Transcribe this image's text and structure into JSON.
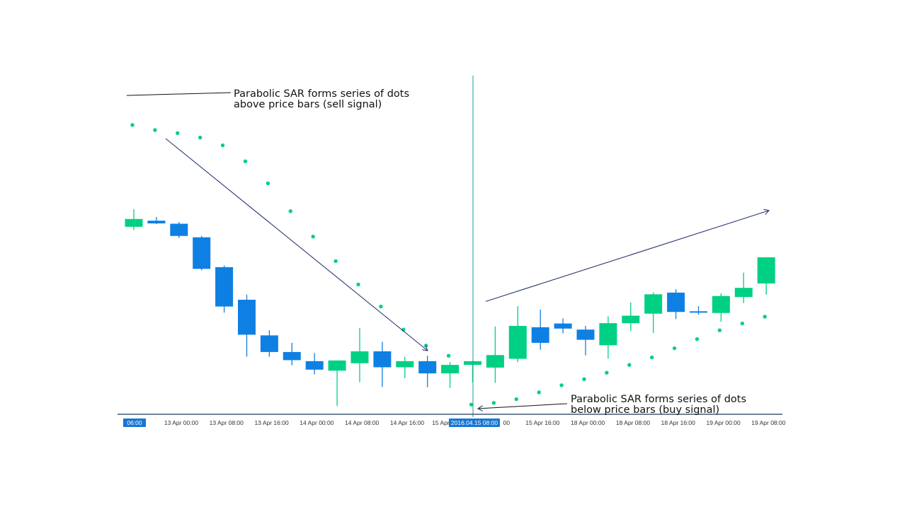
{
  "chart_data": {
    "type": "candlestick",
    "title": "",
    "xlabel": "",
    "ylabel": "",
    "ylim": [
      0,
      100
    ],
    "grid": false,
    "colors": {
      "up": "#00d084",
      "down": "#0f80e3",
      "sar": "#00d084",
      "crosshair": "#1a9e8f",
      "axis": "#1b3a57",
      "arrow": "#2a3770",
      "highlight_bg": "#1676d2"
    },
    "candles": [
      {
        "o": 54.0,
        "h": 59.2,
        "l": 53.0,
        "c": 56.3
      },
      {
        "o": 55.8,
        "h": 56.9,
        "l": 54.8,
        "c": 55.0
      },
      {
        "o": 54.9,
        "h": 55.4,
        "l": 50.7,
        "c": 51.3
      },
      {
        "o": 50.9,
        "h": 51.3,
        "l": 41.2,
        "c": 41.6
      },
      {
        "o": 42.1,
        "h": 42.6,
        "l": 28.7,
        "c": 30.5
      },
      {
        "o": 32.5,
        "h": 34.0,
        "l": 15.7,
        "c": 22.2
      },
      {
        "o": 22.0,
        "h": 23.5,
        "l": 15.7,
        "c": 17.1
      },
      {
        "o": 17.1,
        "h": 19.8,
        "l": 13.2,
        "c": 14.7
      },
      {
        "o": 14.4,
        "h": 16.8,
        "l": 10.5,
        "c": 11.9
      },
      {
        "o": 11.6,
        "h": 14.6,
        "l": 1.2,
        "c": 14.6
      },
      {
        "o": 13.8,
        "h": 24.2,
        "l": 8.2,
        "c": 17.3
      },
      {
        "o": 17.3,
        "h": 20.1,
        "l": 6.8,
        "c": 12.6
      },
      {
        "o": 12.6,
        "h": 15.7,
        "l": 9.4,
        "c": 14.4
      },
      {
        "o": 14.4,
        "h": 16.0,
        "l": 6.7,
        "c": 10.8
      },
      {
        "o": 10.8,
        "h": 14.1,
        "l": 6.5,
        "c": 13.3
      },
      {
        "o": 13.3,
        "h": 14.4,
        "l": 8.2,
        "c": 14.4
      },
      {
        "o": 12.5,
        "h": 24.6,
        "l": 8.0,
        "c": 16.2
      },
      {
        "o": 15.1,
        "h": 30.6,
        "l": 14.1,
        "c": 24.8
      },
      {
        "o": 24.4,
        "h": 29.6,
        "l": 17.8,
        "c": 19.8
      },
      {
        "o": 25.5,
        "h": 27.0,
        "l": 22.6,
        "c": 24.0
      },
      {
        "o": 23.7,
        "h": 24.8,
        "l": 16.1,
        "c": 20.7
      },
      {
        "o": 19.1,
        "h": 27.6,
        "l": 15.1,
        "c": 25.6
      },
      {
        "o": 25.6,
        "h": 31.7,
        "l": 23.3,
        "c": 27.8
      },
      {
        "o": 28.4,
        "h": 34.7,
        "l": 22.7,
        "c": 34.1
      },
      {
        "o": 34.6,
        "h": 35.6,
        "l": 26.8,
        "c": 28.9
      },
      {
        "o": 29.1,
        "h": 30.6,
        "l": 28.1,
        "c": 28.7
      },
      {
        "o": 28.6,
        "h": 34.4,
        "l": 26.0,
        "c": 33.6
      },
      {
        "o": 33.3,
        "h": 40.5,
        "l": 31.5,
        "c": 36.0
      },
      {
        "o": 37.3,
        "h": 45.0,
        "l": 34.0,
        "c": 45.0
      }
    ],
    "sar": [
      {
        "i": 0,
        "v": 84.0
      },
      {
        "i": 1,
        "v": 82.5
      },
      {
        "i": 2,
        "v": 81.6
      },
      {
        "i": 3,
        "v": 80.3
      },
      {
        "i": 4,
        "v": 78.0
      },
      {
        "i": 5,
        "v": 73.3
      },
      {
        "i": 6,
        "v": 66.8
      },
      {
        "i": 7,
        "v": 58.6
      },
      {
        "i": 8,
        "v": 51.1
      },
      {
        "i": 9,
        "v": 43.9
      },
      {
        "i": 10,
        "v": 37.0
      },
      {
        "i": 11,
        "v": 30.5
      },
      {
        "i": 12,
        "v": 23.7
      },
      {
        "i": 13,
        "v": 19.0
      },
      {
        "i": 14,
        "v": 16.0
      },
      {
        "i": 15,
        "v": 1.6
      },
      {
        "i": 16,
        "v": 2.1
      },
      {
        "i": 17,
        "v": 3.2
      },
      {
        "i": 18,
        "v": 5.2
      },
      {
        "i": 19,
        "v": 7.3
      },
      {
        "i": 20,
        "v": 9.1
      },
      {
        "i": 21,
        "v": 11.0
      },
      {
        "i": 22,
        "v": 13.3
      },
      {
        "i": 23,
        "v": 15.5
      },
      {
        "i": 24,
        "v": 18.2
      },
      {
        "i": 25,
        "v": 20.9
      },
      {
        "i": 26,
        "v": 23.5
      },
      {
        "i": 27,
        "v": 25.5
      },
      {
        "i": 28,
        "v": 27.5
      }
    ],
    "x_ticks": [
      {
        "label": "06:00",
        "i": 0,
        "highlight": true
      },
      {
        "label": "13 Apr 00:00",
        "i": 2.1
      },
      {
        "label": "13 Apr 08:00",
        "i": 4.1
      },
      {
        "label": "13 Apr 16:00",
        "i": 6.1
      },
      {
        "label": "14 Apr 00:00",
        "i": 8.1
      },
      {
        "label": "14 Apr 08:00",
        "i": 10.1
      },
      {
        "label": "14 Apr 16:00",
        "i": 12.1
      },
      {
        "label": "15 Apr 0",
        "i": 13.7
      },
      {
        "label": "00",
        "i": 16.5
      },
      {
        "label": "15 Apr 16:00",
        "i": 18.1
      },
      {
        "label": "18 Apr 00:00",
        "i": 20.1
      },
      {
        "label": "18 Apr 08:00",
        "i": 22.1
      },
      {
        "label": "18 Apr 16:00",
        "i": 24.1
      },
      {
        "label": "19 Apr 00:00",
        "i": 26.1
      },
      {
        "label": "19 Apr 08:00",
        "i": 28.1
      }
    ],
    "crosshair": {
      "i": 15,
      "label": "2016.04.15 08:00"
    },
    "annotations": [
      {
        "lines": [
          "Parabolic SAR forms series of dots",
          "above price bars (sell signal)"
        ],
        "signal": "sell"
      },
      {
        "lines": [
          "Parabolic SAR forms series of dots",
          "below price bars (buy signal)"
        ],
        "signal": "buy"
      }
    ]
  }
}
